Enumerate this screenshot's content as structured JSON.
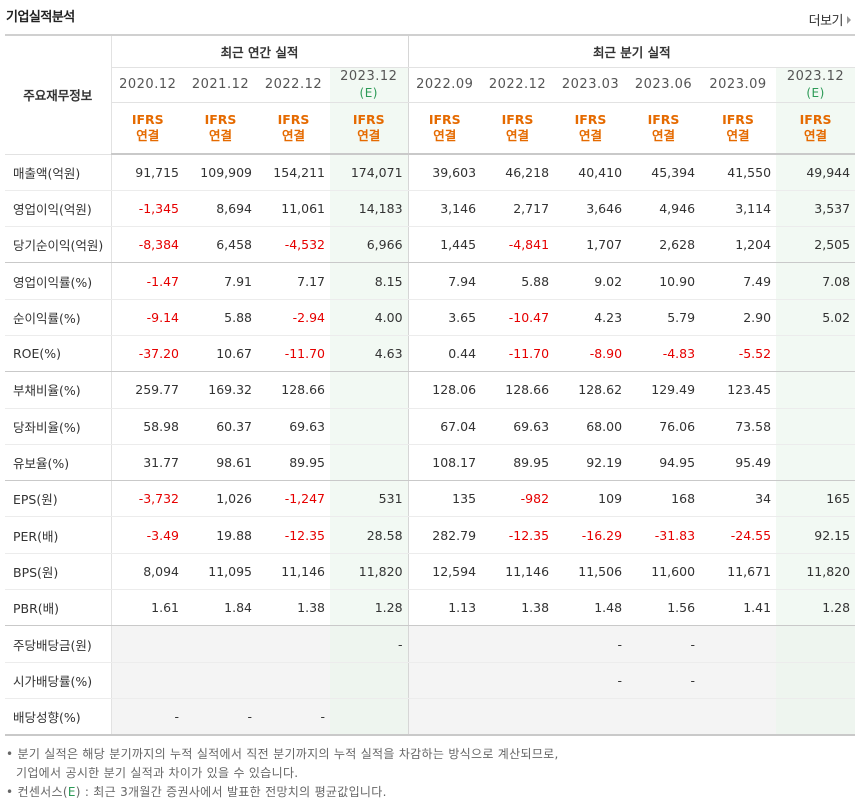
{
  "header": {
    "title": "기업실적분석",
    "more_label": "더보기"
  },
  "table": {
    "row_label_header": "주요재무정보",
    "group_annual": "최근 연간 실적",
    "group_quarterly": "최근 분기 실적",
    "periods": [
      {
        "date": "2020.12",
        "est": ""
      },
      {
        "date": "2021.12",
        "est": ""
      },
      {
        "date": "2022.12",
        "est": ""
      },
      {
        "date": "2023.12",
        "est": "(E)"
      },
      {
        "date": "2022.09",
        "est": ""
      },
      {
        "date": "2022.12",
        "est": ""
      },
      {
        "date": "2023.03",
        "est": ""
      },
      {
        "date": "2023.06",
        "est": ""
      },
      {
        "date": "2023.09",
        "est": ""
      },
      {
        "date": "2023.12",
        "est": "(E)"
      }
    ],
    "ifrs_line1": "IFRS",
    "ifrs_line2": "연결",
    "rows": [
      {
        "label": "매출액(억원)",
        "values": [
          "91,715",
          "109,909",
          "154,211",
          "174,071",
          "39,603",
          "46,218",
          "40,410",
          "45,394",
          "41,550",
          "49,944"
        ]
      },
      {
        "label": "영업이익(억원)",
        "values": [
          "-1,345",
          "8,694",
          "11,061",
          "14,183",
          "3,146",
          "2,717",
          "3,646",
          "4,946",
          "3,114",
          "3,537"
        ]
      },
      {
        "label": "당기순이익(억원)",
        "values": [
          "-8,384",
          "6,458",
          "-4,532",
          "6,966",
          "1,445",
          "-4,841",
          "1,707",
          "2,628",
          "1,204",
          "2,505"
        ]
      },
      {
        "label": "영업이익률(%)",
        "values": [
          "-1.47",
          "7.91",
          "7.17",
          "8.15",
          "7.94",
          "5.88",
          "9.02",
          "10.90",
          "7.49",
          "7.08"
        ]
      },
      {
        "label": "순이익률(%)",
        "values": [
          "-9.14",
          "5.88",
          "-2.94",
          "4.00",
          "3.65",
          "-10.47",
          "4.23",
          "5.79",
          "2.90",
          "5.02"
        ]
      },
      {
        "label": "ROE(%)",
        "values": [
          "-37.20",
          "10.67",
          "-11.70",
          "4.63",
          "0.44",
          "-11.70",
          "-8.90",
          "-4.83",
          "-5.52",
          ""
        ]
      },
      {
        "label": "부채비율(%)",
        "values": [
          "259.77",
          "169.32",
          "128.66",
          "",
          "128.06",
          "128.66",
          "128.62",
          "129.49",
          "123.45",
          ""
        ]
      },
      {
        "label": "당좌비율(%)",
        "values": [
          "58.98",
          "60.37",
          "69.63",
          "",
          "67.04",
          "69.63",
          "68.00",
          "76.06",
          "73.58",
          ""
        ]
      },
      {
        "label": "유보율(%)",
        "values": [
          "31.77",
          "98.61",
          "89.95",
          "",
          "108.17",
          "89.95",
          "92.19",
          "94.95",
          "95.49",
          ""
        ]
      },
      {
        "label": "EPS(원)",
        "values": [
          "-3,732",
          "1,026",
          "-1,247",
          "531",
          "135",
          "-982",
          "109",
          "168",
          "34",
          "165"
        ]
      },
      {
        "label": "PER(배)",
        "values": [
          "-3.49",
          "19.88",
          "-12.35",
          "28.58",
          "282.79",
          "-12.35",
          "-16.29",
          "-31.83",
          "-24.55",
          "92.15"
        ]
      },
      {
        "label": "BPS(원)",
        "values": [
          "8,094",
          "11,095",
          "11,146",
          "11,820",
          "12,594",
          "11,146",
          "11,506",
          "11,600",
          "11,671",
          "11,820"
        ]
      },
      {
        "label": "PBR(배)",
        "values": [
          "1.61",
          "1.84",
          "1.38",
          "1.28",
          "1.13",
          "1.38",
          "1.48",
          "1.56",
          "1.41",
          "1.28"
        ]
      },
      {
        "label": "주당배당금(원)",
        "values": [
          "",
          "",
          "",
          "-",
          "",
          "",
          "-",
          "-",
          "",
          ""
        ]
      },
      {
        "label": "시가배당률(%)",
        "values": [
          "",
          "",
          "",
          "",
          "",
          "",
          "-",
          "-",
          "",
          ""
        ]
      },
      {
        "label": "배당성향(%)",
        "values": [
          "-",
          "-",
          "-",
          "",
          "",
          "",
          "",
          "",
          "",
          ""
        ]
      }
    ]
  },
  "notes": {
    "line1": "분기 실적은 해당 분기까지의 누적 실적에서 직전 분기까지의 누적 실적을 차감하는 방식으로 계산되므로,",
    "line2": "기업에서 공시한 분기 실적과 차이가 있을 수 있습니다.",
    "line3_pre": "컨센서스(",
    "line3_e": "E",
    "line3_post": ") : 최근 3개월간 증권사에서 발표한 전망치의 평균값입니다."
  }
}
